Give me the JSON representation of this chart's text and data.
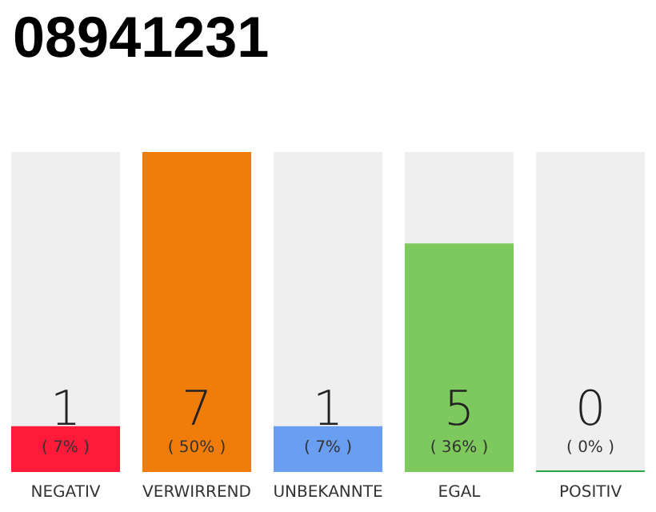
{
  "chart_data": {
    "type": "bar",
    "title": "08941231",
    "categories": [
      "NEGATIV",
      "VERWIRREND",
      "UNBEKANNTE",
      "EGAL",
      "POSITIV"
    ],
    "values": [
      1,
      7,
      1,
      5,
      0
    ],
    "colors": [
      "#ff1a3a",
      "#f07d0a",
      "#6a9ef0",
      "#7dc95e",
      "#2ca84a"
    ],
    "value_labels": [
      "1\n( 7% )",
      "7\n( 50% )",
      "1\n( 7% )",
      "5\n( 36% )",
      "0\n( 0% )"
    ]
  }
}
